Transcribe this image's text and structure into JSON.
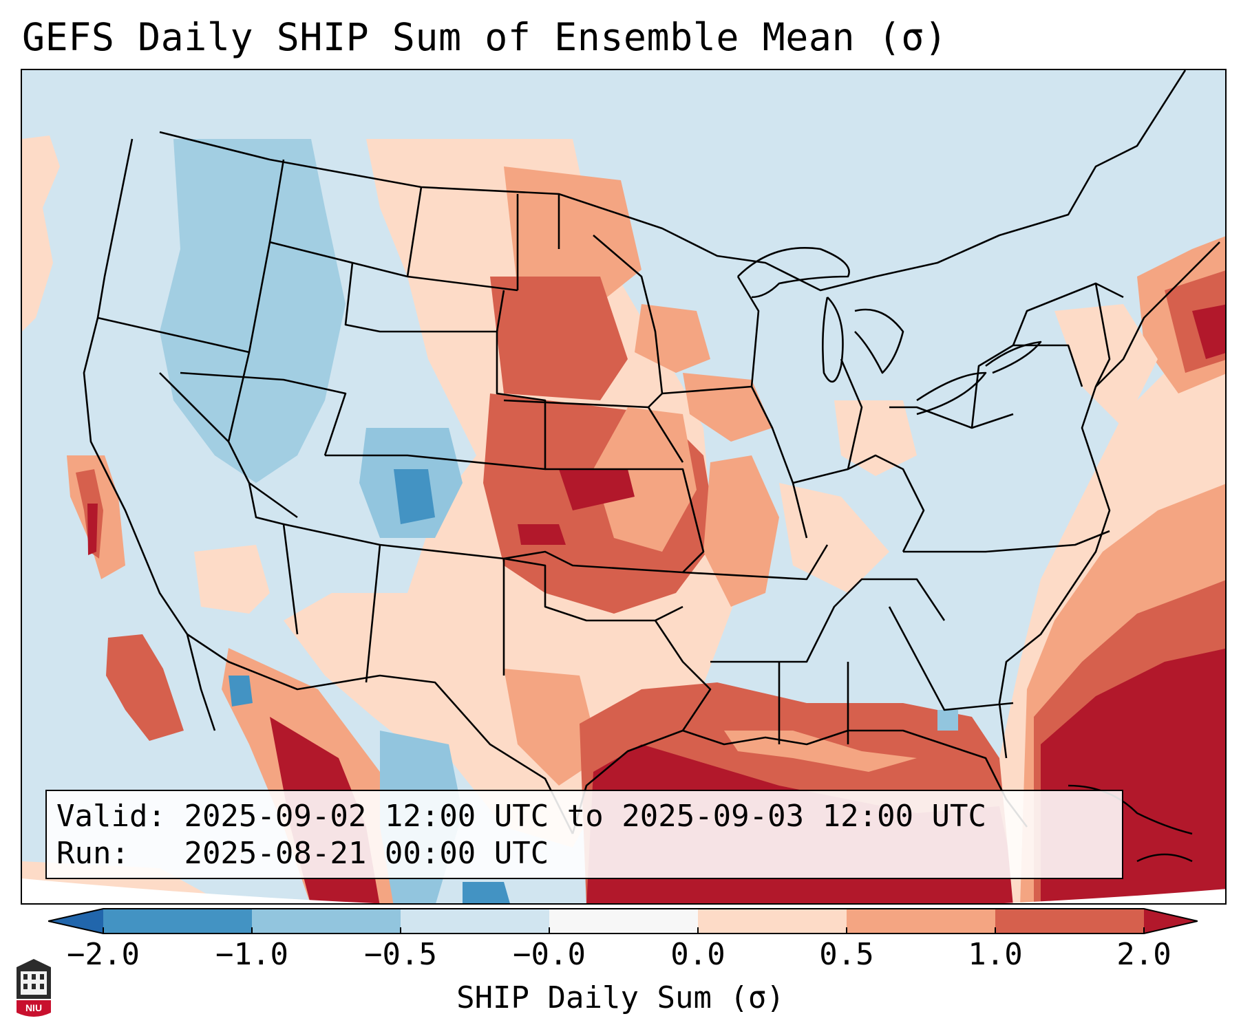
{
  "title": "GEFS Daily SHIP Sum of Ensemble Mean (σ)",
  "info": {
    "valid_label": "Valid:",
    "valid_value": "2025-09-02 12:00 UTC to 2025-09-03 12:00 UTC",
    "run_label": "Run:",
    "run_value": "2025-08-21 00:00 UTC"
  },
  "colorbar": {
    "label": "SHIP Daily Sum (σ)",
    "ticks": [
      "−2.0",
      "−1.0",
      "−0.5",
      "−0.0",
      "0.0",
      "0.5",
      "1.0",
      "2.0"
    ],
    "bins": [
      {
        "range": "< -2.0",
        "color": "#2166ac"
      },
      {
        "range": "-2.0 to -1.0",
        "color": "#4393c3"
      },
      {
        "range": "-1.0 to -0.5",
        "color": "#92c5de"
      },
      {
        "range": "-0.5 to -0.0",
        "color": "#d1e5f0"
      },
      {
        "range": "-0.0 to 0.0",
        "color": "#f7f7f7"
      },
      {
        "range": "0.0 to 0.5",
        "color": "#fddbc7"
      },
      {
        "range": "0.5 to 1.0",
        "color": "#f4a582"
      },
      {
        "range": "1.0 to 2.0",
        "color": "#d6604d"
      },
      {
        "range": "> 2.0",
        "color": "#b2182b"
      }
    ]
  },
  "logo": {
    "text": "NIU",
    "icon": "niu-university-logo-icon"
  }
}
